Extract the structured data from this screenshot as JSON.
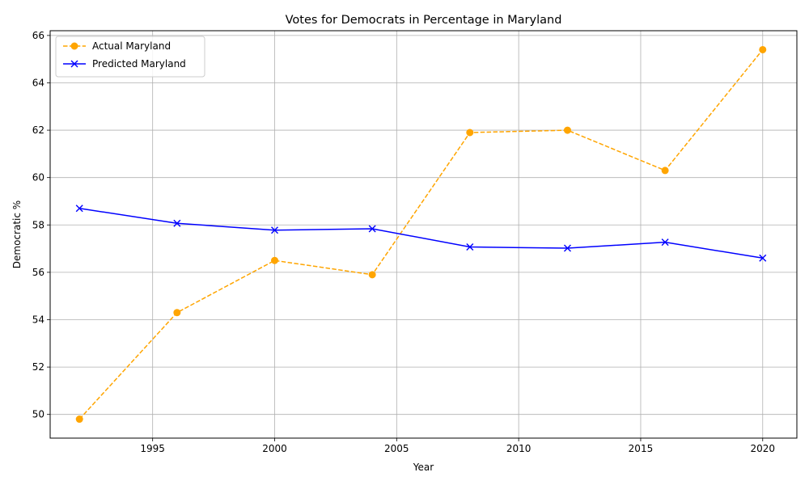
{
  "chart_data": {
    "type": "line",
    "title": "Votes for Democrats in Percentage in Maryland",
    "xlabel": "Year",
    "ylabel": "Democratic %",
    "xlim": [
      1990.8,
      2021.4
    ],
    "ylim": [
      49.0,
      66.2
    ],
    "xticks": [
      1995,
      2000,
      2005,
      2010,
      2015,
      2020
    ],
    "yticks": [
      50,
      52,
      54,
      56,
      58,
      60,
      62,
      64,
      66
    ],
    "grid": true,
    "legend_position": "top-left",
    "x": [
      1992,
      1996,
      2000,
      2004,
      2008,
      2012,
      2016,
      2020
    ],
    "series": [
      {
        "name": "Actual Maryland",
        "values": [
          49.8,
          54.3,
          56.5,
          55.9,
          61.9,
          62.0,
          60.3,
          65.4
        ],
        "color": "#FFA500",
        "line_style": "dashed",
        "marker": "circle"
      },
      {
        "name": "Predicted Maryland",
        "values": [
          58.7,
          58.07,
          57.78,
          57.84,
          57.07,
          57.02,
          57.27,
          56.6
        ],
        "color": "#0000FF",
        "line_style": "solid",
        "marker": "x"
      }
    ]
  }
}
